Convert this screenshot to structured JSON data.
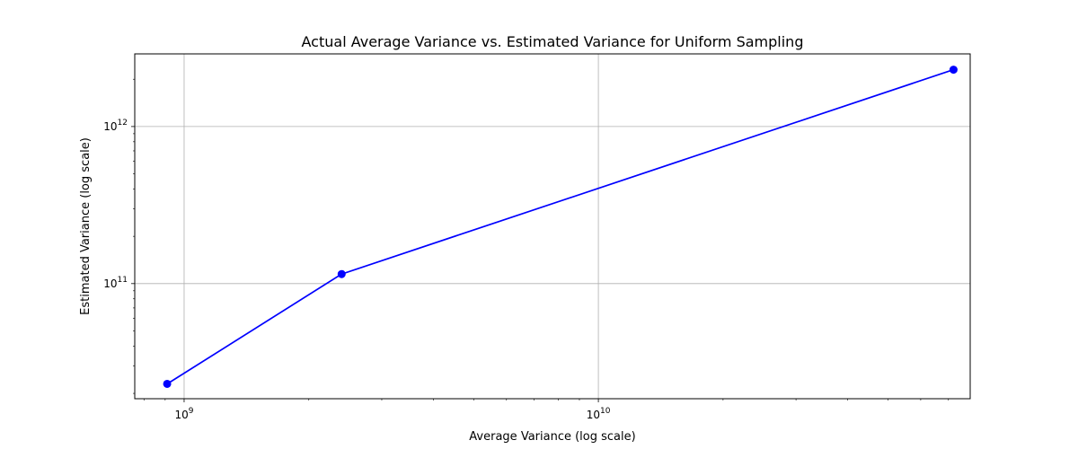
{
  "chart_data": {
    "type": "line",
    "title": "Actual Average Variance vs. Estimated Variance for Uniform Sampling",
    "xlabel": "Average Variance (log scale)",
    "ylabel": "Estimated Variance (log scale)",
    "xscale": "log",
    "yscale": "log",
    "xlim": [
      760000000,
      79000000000
    ],
    "ylim": [
      18500000000,
      2900000000000
    ],
    "grid": true,
    "color": "#0000ff",
    "marker": "circle",
    "x_major_ticks": [
      {
        "value": 1000000000,
        "base": "10",
        "exp": "9"
      },
      {
        "value": 10000000000,
        "base": "10",
        "exp": "10"
      }
    ],
    "y_major_ticks": [
      {
        "value": 100000000000,
        "base": "10",
        "exp": "11"
      },
      {
        "value": 1000000000000,
        "base": "10",
        "exp": "12"
      }
    ],
    "series": [
      {
        "x": [
          910000000,
          2400000000,
          72000000000
        ],
        "y": [
          23000000000,
          115000000000,
          2300000000000
        ]
      }
    ]
  }
}
